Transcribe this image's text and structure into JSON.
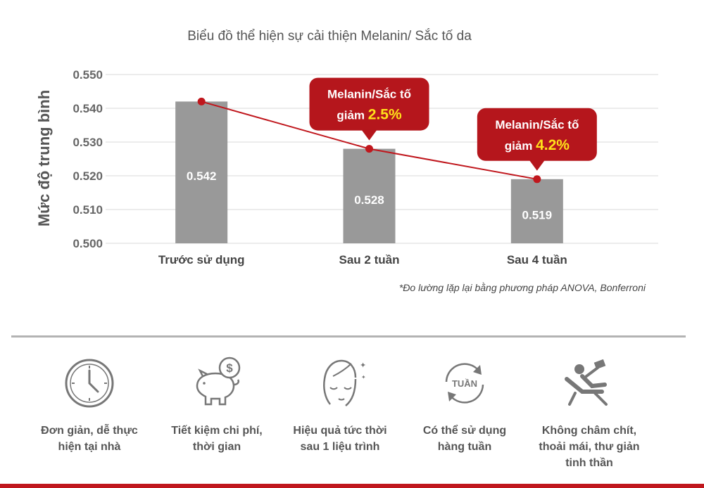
{
  "chart_data": {
    "type": "bar",
    "title": "Biểu đồ thể hiện sự cải thiện Melanin/ Sắc tố da",
    "ylabel": "Mức độ trung bình",
    "xlabel": "",
    "ylim": [
      0.5,
      0.55
    ],
    "yticks": [
      "0.550",
      "0.540",
      "0.530",
      "0.520",
      "0.510",
      "0.500"
    ],
    "ytick_values": [
      0.55,
      0.54,
      0.53,
      0.52,
      0.51,
      0.5
    ],
    "categories": [
      "Trước sử dụng",
      "Sau 2 tuần",
      "Sau 4 tuần"
    ],
    "values": [
      0.542,
      0.528,
      0.519
    ],
    "value_labels": [
      "0.542",
      "0.528",
      "0.519"
    ],
    "line_overlay": true,
    "grid": true,
    "colors": {
      "bar": "#999999",
      "line": "#c0171d",
      "callout": "#b5161c",
      "highlight": "#ffe11a"
    },
    "annotations": [
      {
        "category_index": 1,
        "line1": "Melanin/Sắc tố",
        "prefix": "giảm",
        "value": "2.5%"
      },
      {
        "category_index": 2,
        "line1": "Melanin/Sắc tố",
        "prefix": "giảm",
        "value": "4.2%"
      }
    ],
    "footnote": "*Đo lường lặp lại bằng phương pháp ANOVA, Bonferroni"
  },
  "features": [
    {
      "icon": "clock-icon",
      "label": "Đơn giản, dễ thực\nhiện tại nhà"
    },
    {
      "icon": "piggy-bank-icon",
      "label": "Tiết kiệm chi phí,\nthời gian"
    },
    {
      "icon": "face-icon",
      "label": "Hiệu quả tức thời\nsau 1 liệu trình"
    },
    {
      "icon": "weekly-cycle-icon",
      "icon_text": "TUẦN",
      "label": "Có thể sử dụng\nhàng tuần"
    },
    {
      "icon": "relax-chair-icon",
      "label": "Không châm chít,\nthoải mái, thư giản\ntinh thần"
    }
  ]
}
